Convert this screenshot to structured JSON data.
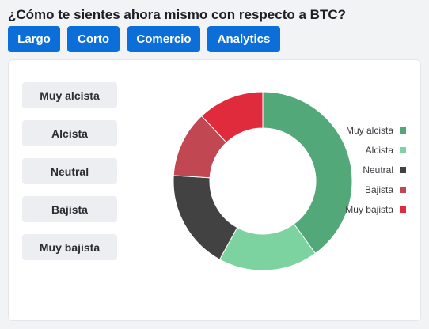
{
  "question": "¿Cómo te sientes ahora mismo con respecto a BTC?",
  "tabs": [
    {
      "label": "Largo"
    },
    {
      "label": "Corto"
    },
    {
      "label": "Comercio"
    },
    {
      "label": "Analytics"
    }
  ],
  "vote_options": [
    {
      "label": "Muy alcista"
    },
    {
      "label": "Alcista"
    },
    {
      "label": "Neutral"
    },
    {
      "label": "Bajista"
    },
    {
      "label": "Muy bajista"
    }
  ],
  "colors": {
    "tab_bg": "#0b6ed9",
    "muy_alcista": "#52a878",
    "alcista": "#7dd3a0",
    "neutral": "#424242",
    "bajista": "#c14753",
    "muy_bajista": "#e02b3d"
  },
  "chart_data": {
    "type": "pie",
    "donut": true,
    "legend_position": "right",
    "categories": [
      "Muy alcista",
      "Alcista",
      "Neutral",
      "Bajista",
      "Muy bajista"
    ],
    "values": [
      40,
      18,
      18,
      12,
      12
    ],
    "colors": [
      "#52a878",
      "#7dd3a0",
      "#424242",
      "#c14753",
      "#e02b3d"
    ]
  }
}
